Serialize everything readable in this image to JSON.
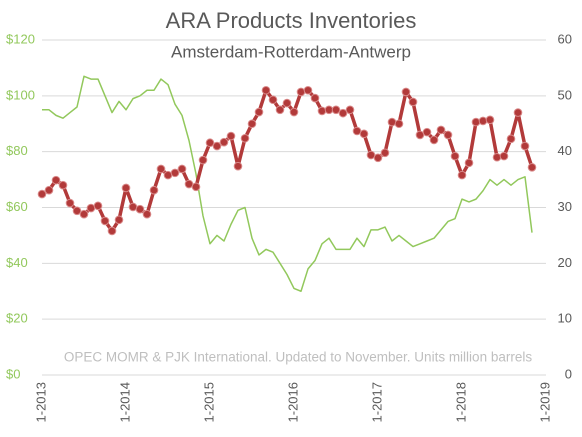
{
  "chart_data": {
    "type": "line",
    "title": "ARA Products Inventories",
    "subtitle": "Amsterdam-Rotterdam-Antwerp",
    "annotation": "OPEC MOMR & PJK International. Updated to November. Units million barrels",
    "categories": [
      "1-2013",
      null,
      null,
      null,
      null,
      null,
      null,
      null,
      null,
      null,
      null,
      null,
      "1-2014",
      null,
      null,
      null,
      null,
      null,
      null,
      null,
      null,
      null,
      null,
      null,
      "1-2015",
      null,
      null,
      null,
      null,
      null,
      null,
      null,
      null,
      null,
      null,
      null,
      "1-2016",
      null,
      null,
      null,
      null,
      null,
      null,
      null,
      null,
      null,
      null,
      null,
      "1-2017",
      null,
      null,
      null,
      null,
      null,
      null,
      null,
      null,
      null,
      null,
      null,
      "1-2018",
      null,
      null,
      null,
      null,
      null,
      null,
      null,
      null,
      null,
      null,
      null,
      "1-2019"
    ],
    "series": [
      {
        "color": "#92c85c",
        "axis": "y",
        "values": [
          95,
          95,
          93,
          92,
          94,
          96,
          107,
          106,
          106,
          100,
          94,
          98,
          95,
          99,
          100,
          102,
          102,
          106,
          104,
          97,
          93,
          84,
          72,
          57,
          47,
          50,
          48,
          54,
          59,
          60,
          49,
          43,
          45,
          44,
          40,
          36,
          31,
          30,
          38,
          41,
          47,
          49,
          45,
          45,
          45,
          49,
          46,
          52,
          52,
          53,
          48,
          50,
          48,
          46,
          47,
          48,
          49,
          52,
          55,
          56,
          63,
          62,
          63,
          66,
          70,
          68,
          70,
          68,
          70,
          71,
          51,
          null,
          null
        ]
      },
      {
        "color": "#b23a3a",
        "axis": "y2",
        "markers": true,
        "values": [
          32.4,
          33.1,
          34.9,
          34,
          30.8,
          29.4,
          28.8,
          29.9,
          30.3,
          27.6,
          25.8,
          27.8,
          33.5,
          30.1,
          29.7,
          28.8,
          33.1,
          36.9,
          35.8,
          36.2,
          36.9,
          34.2,
          33.7,
          38.5,
          41.6,
          41,
          41.7,
          42.8,
          37.4,
          42.4,
          45,
          47.1,
          51,
          49.3,
          47.5,
          48.7,
          47.1,
          50.7,
          51,
          49.6,
          47.3,
          47.5,
          47.5,
          46.9,
          47.5,
          43.7,
          43.2,
          39.4,
          38.9,
          39.8,
          45.3,
          45,
          50.7,
          48.9,
          43,
          43.5,
          42.1,
          43.9,
          43,
          39.2,
          35.8,
          38,
          45.3,
          45.5,
          45.7,
          39,
          39.2,
          42.3,
          47,
          41,
          37.2,
          null,
          null
        ]
      }
    ],
    "ylim": [
      0,
      120
    ],
    "yticks": [
      {
        "value": 0,
        "label": "$0"
      },
      {
        "value": 20,
        "label": "$20"
      },
      {
        "value": 40,
        "label": "$40"
      },
      {
        "value": 60,
        "label": "$60"
      },
      {
        "value": 80,
        "label": "$80"
      },
      {
        "value": 100,
        "label": "$100"
      },
      {
        "value": 120,
        "label": "$120"
      }
    ],
    "y2lim": [
      0,
      60
    ],
    "y2ticks": [
      0,
      10,
      20,
      30,
      40,
      50,
      60
    ],
    "grid": true
  }
}
